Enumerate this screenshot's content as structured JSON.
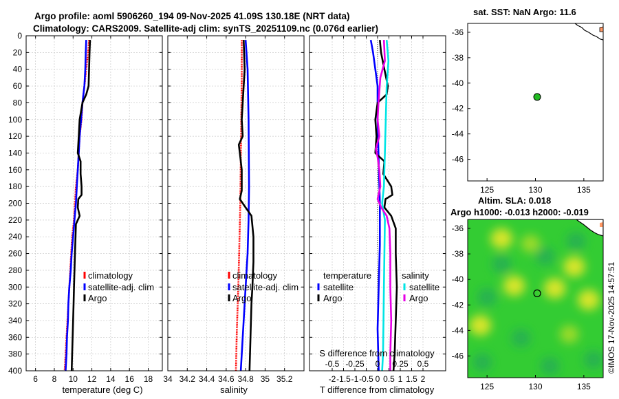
{
  "header": {
    "line1": "Argo profile: aoml 5906260_194 09-Nov-2025 41.09S 130.18E (NRT data)",
    "line2": "Climatology: CARS2009. Satellite-adj clim: synTS_20251109.nc (0.076d earlier)"
  },
  "credit": "©IMOS 17-Nov-2025 14:57:51",
  "colors": {
    "climatology": "#ff0000",
    "satellite": "#0000ff",
    "argo": "#000000",
    "sat_salinity": "#00e5e5",
    "argo_salinity": "#e600e6",
    "land": "#ff9966",
    "sla_base": "#33cc33"
  },
  "chart_data": [
    {
      "id": "temperature",
      "type": "line",
      "xlabel": "temperature (deg C)",
      "ylabel": "",
      "xlim": [
        5,
        19.5
      ],
      "ylim": [
        400,
        0
      ],
      "xticks": [
        6,
        8,
        10,
        12,
        14,
        16,
        18
      ],
      "yticks": [
        0,
        20,
        40,
        60,
        80,
        100,
        120,
        140,
        160,
        180,
        200,
        220,
        240,
        260,
        280,
        300,
        320,
        340,
        360,
        380,
        400
      ],
      "legend": [
        "climatology",
        "satellite-adj. clim",
        "Argo"
      ],
      "series": [
        {
          "name": "climatology",
          "color": "#ff0000",
          "points": [
            [
              11.7,
              5
            ],
            [
              11.6,
              20
            ],
            [
              11.4,
              40
            ],
            [
              11.2,
              60
            ],
            [
              11.0,
              80
            ],
            [
              10.9,
              100
            ],
            [
              10.7,
              120
            ],
            [
              10.6,
              140
            ],
            [
              10.5,
              160
            ],
            [
              10.3,
              180
            ],
            [
              10.2,
              200
            ],
            [
              10.1,
              220
            ],
            [
              9.9,
              240
            ],
            [
              9.8,
              260
            ],
            [
              9.7,
              280
            ],
            [
              9.6,
              300
            ],
            [
              9.5,
              320
            ],
            [
              9.4,
              340
            ],
            [
              9.3,
              360
            ],
            [
              9.2,
              380
            ],
            [
              9.1,
              400
            ]
          ]
        },
        {
          "name": "satellite-adj. clim",
          "color": "#0000ff",
          "points": [
            [
              11.4,
              5
            ],
            [
              11.35,
              20
            ],
            [
              11.3,
              40
            ],
            [
              11.2,
              60
            ],
            [
              11.0,
              80
            ],
            [
              10.85,
              100
            ],
            [
              10.7,
              120
            ],
            [
              10.6,
              140
            ],
            [
              10.5,
              160
            ],
            [
              10.4,
              180
            ],
            [
              10.3,
              200
            ],
            [
              10.15,
              220
            ],
            [
              10.0,
              240
            ],
            [
              9.85,
              260
            ],
            [
              9.75,
              280
            ],
            [
              9.6,
              300
            ],
            [
              9.5,
              320
            ],
            [
              9.45,
              340
            ],
            [
              9.35,
              360
            ],
            [
              9.3,
              380
            ],
            [
              9.2,
              400
            ]
          ]
        },
        {
          "name": "Argo",
          "color": "#000000",
          "points": [
            [
              11.8,
              5
            ],
            [
              11.75,
              20
            ],
            [
              11.7,
              40
            ],
            [
              11.65,
              60
            ],
            [
              11.4,
              70
            ],
            [
              11.0,
              80
            ],
            [
              10.7,
              100
            ],
            [
              10.6,
              120
            ],
            [
              10.5,
              140
            ],
            [
              10.8,
              150
            ],
            [
              10.8,
              165
            ],
            [
              10.9,
              180
            ],
            [
              10.9,
              190
            ],
            [
              10.55,
              195
            ],
            [
              10.5,
              205
            ],
            [
              10.7,
              215
            ],
            [
              10.3,
              225
            ],
            [
              10.2,
              260
            ],
            [
              10.1,
              300
            ],
            [
              10.05,
              320
            ],
            [
              10.0,
              340
            ],
            [
              9.95,
              360
            ],
            [
              9.9,
              380
            ],
            [
              9.85,
              400
            ]
          ]
        }
      ]
    },
    {
      "id": "salinity",
      "type": "line",
      "xlabel": "salinity",
      "ylabel": "",
      "xlim": [
        34.0,
        35.4
      ],
      "ylim": [
        400,
        0
      ],
      "xticks": [
        34,
        34.2,
        34.4,
        34.6,
        34.8,
        35,
        35.2
      ],
      "yticks": [],
      "legend": [
        "climatology",
        "satellite-adj. clim",
        "Argo"
      ],
      "series": [
        {
          "name": "climatology",
          "color": "#ff0000",
          "points": [
            [
              34.76,
              5
            ],
            [
              34.76,
              50
            ],
            [
              34.755,
              100
            ],
            [
              34.75,
              150
            ],
            [
              34.745,
              200
            ],
            [
              34.735,
              250
            ],
            [
              34.725,
              300
            ],
            [
              34.71,
              350
            ],
            [
              34.7,
              400
            ]
          ]
        },
        {
          "name": "satellite-adj. clim",
          "color": "#0000ff",
          "points": [
            [
              34.8,
              5
            ],
            [
              34.82,
              40
            ],
            [
              34.83,
              100
            ],
            [
              34.835,
              180
            ],
            [
              34.83,
              220
            ],
            [
              34.82,
              260
            ],
            [
              34.8,
              300
            ],
            [
              34.78,
              340
            ],
            [
              34.76,
              380
            ],
            [
              34.75,
              400
            ]
          ]
        },
        {
          "name": "Argo",
          "color": "#000000",
          "points": [
            [
              34.78,
              5
            ],
            [
              34.79,
              40
            ],
            [
              34.77,
              80
            ],
            [
              34.76,
              100
            ],
            [
              34.77,
              120
            ],
            [
              34.73,
              130
            ],
            [
              34.74,
              140
            ],
            [
              34.76,
              160
            ],
            [
              34.76,
              185
            ],
            [
              34.74,
              195
            ],
            [
              34.8,
              205
            ],
            [
              34.86,
              215
            ],
            [
              34.88,
              240
            ],
            [
              34.88,
              270
            ],
            [
              34.87,
              300
            ],
            [
              34.86,
              320
            ],
            [
              34.85,
              360
            ],
            [
              34.84,
              400
            ]
          ]
        }
      ]
    },
    {
      "id": "difference",
      "type": "line",
      "xlabel": "T difference from climatology",
      "xlabel_top": "S difference from climatology",
      "ylabel": "",
      "xlim": [
        -3,
        3
      ],
      "xlim_salinity": [
        -0.75,
        0.75
      ],
      "ylim": [
        400,
        0
      ],
      "xticks": [
        -2,
        -1.5,
        -1,
        -0.5,
        0,
        0.5,
        1,
        1.5,
        2
      ],
      "xtick_labels": [
        "-2",
        "-1.5",
        "-1",
        "-0.5",
        "0",
        "0.5",
        "1",
        "1.5",
        "2"
      ],
      "xticks_salinity": [
        -0.5,
        -0.25,
        0,
        0.25,
        0.5
      ],
      "xtick_labels_salinity": [
        "-0.5",
        "-0.25",
        "0",
        "0.25",
        "0.5"
      ],
      "legend": {
        "temperature": "temperature",
        "salinity": "salinity",
        "satellite": "satellite",
        "argo": "Argo"
      },
      "series": [
        {
          "name": "satellite (temperature)",
          "color": "#0000ff",
          "points": [
            [
              -0.3,
              5
            ],
            [
              -0.2,
              20
            ],
            [
              -0.1,
              40
            ],
            [
              0.0,
              60
            ],
            [
              0.0,
              100
            ],
            [
              0.05,
              150
            ],
            [
              0.1,
              200
            ],
            [
              0.1,
              250
            ],
            [
              0.05,
              300
            ],
            [
              0.0,
              350
            ],
            [
              0.05,
              400
            ]
          ]
        },
        {
          "name": "Argo (temperature)",
          "color": "#000000",
          "points": [
            [
              0.1,
              5
            ],
            [
              0.15,
              20
            ],
            [
              0.3,
              40
            ],
            [
              0.45,
              60
            ],
            [
              0.4,
              70
            ],
            [
              0.0,
              80
            ],
            [
              -0.1,
              100
            ],
            [
              -0.05,
              120
            ],
            [
              -0.1,
              140
            ],
            [
              0.3,
              150
            ],
            [
              0.25,
              165
            ],
            [
              0.6,
              180
            ],
            [
              0.65,
              190
            ],
            [
              0.35,
              195
            ],
            [
              0.3,
              205
            ],
            [
              0.6,
              215
            ],
            [
              0.8,
              230
            ],
            [
              0.8,
              260
            ],
            [
              0.85,
              300
            ],
            [
              0.8,
              340
            ],
            [
              0.75,
              380
            ],
            [
              0.7,
              400
            ]
          ]
        },
        {
          "name": "satellite (salinity)",
          "color": "#00e5e5",
          "points": [
            [
              0.1,
              5
            ],
            [
              0.12,
              30
            ],
            [
              0.1,
              60
            ],
            [
              0.09,
              100
            ],
            [
              0.08,
              140
            ],
            [
              0.07,
              180
            ],
            [
              0.05,
              200
            ],
            [
              0.08,
              220
            ],
            [
              0.075,
              260
            ],
            [
              0.07,
              300
            ],
            [
              0.065,
              340
            ],
            [
              0.06,
              380
            ],
            [
              0.05,
              400
            ]
          ]
        },
        {
          "name": "Argo (salinity)",
          "color": "#e600e6",
          "points": [
            [
              0.07,
              5
            ],
            [
              0.08,
              30
            ],
            [
              0.03,
              50
            ],
            [
              0.01,
              80
            ],
            [
              0.0,
              100
            ],
            [
              0.02,
              120
            ],
            [
              -0.02,
              135
            ],
            [
              0.0,
              145
            ],
            [
              0.02,
              160
            ],
            [
              0.03,
              180
            ],
            [
              0.0,
              195
            ],
            [
              0.04,
              205
            ],
            [
              0.1,
              215
            ],
            [
              0.13,
              230
            ],
            [
              0.14,
              260
            ],
            [
              0.14,
              300
            ],
            [
              0.15,
              340
            ],
            [
              0.14,
              380
            ],
            [
              0.14,
              400
            ]
          ]
        }
      ]
    },
    {
      "id": "sst_map",
      "type": "scatter",
      "title": "sat. SST: NaN Argo: 11.6",
      "xlim": [
        123,
        137
      ],
      "ylim": [
        -47.7,
        -35.3
      ],
      "xticks": [
        125,
        130,
        135
      ],
      "yticks": [
        -36,
        -38,
        -40,
        -42,
        -44,
        -46
      ],
      "marker": {
        "lon": 130.18,
        "lat": -41.09,
        "color": "#22bb22"
      }
    },
    {
      "id": "sla_map",
      "type": "heatmap",
      "title": "Altim. SLA: 0.018",
      "subtitle": "Argo h1000: -0.013 h2000: -0.019",
      "xlim": [
        123,
        137
      ],
      "ylim": [
        -47.7,
        -35.3
      ],
      "xticks": [
        125,
        130,
        135
      ],
      "yticks": [
        -36,
        -38,
        -40,
        -42,
        -44,
        -46
      ],
      "marker": {
        "lon": 130.18,
        "lat": -41.09
      },
      "blobs": [
        {
          "lon": 126.5,
          "lat": -36.8,
          "kind": "high"
        },
        {
          "lon": 132.0,
          "lat": -40.7,
          "kind": "high"
        },
        {
          "lon": 134.0,
          "lat": -39.0,
          "kind": "high"
        },
        {
          "lon": 135.5,
          "lat": -41.6,
          "kind": "high"
        },
        {
          "lon": 124.3,
          "lat": -43.6,
          "kind": "high"
        },
        {
          "lon": 127.8,
          "lat": -40.5,
          "kind": "high"
        },
        {
          "lon": 129.5,
          "lat": -37.2,
          "kind": "mid"
        },
        {
          "lon": 133.5,
          "lat": -44.3,
          "kind": "mid"
        },
        {
          "lon": 125.0,
          "lat": -41.4,
          "kind": "low"
        },
        {
          "lon": 128.5,
          "lat": -44.6,
          "kind": "low"
        },
        {
          "lon": 124.5,
          "lat": -46.5,
          "kind": "low"
        },
        {
          "lon": 131.5,
          "lat": -46.8,
          "kind": "low"
        },
        {
          "lon": 136.0,
          "lat": -46.3,
          "kind": "low"
        },
        {
          "lon": 131.0,
          "lat": -38.2,
          "kind": "low"
        },
        {
          "lon": 126.5,
          "lat": -38.8,
          "kind": "low"
        },
        {
          "lon": 134.2,
          "lat": -37.0,
          "kind": "low"
        }
      ]
    }
  ]
}
